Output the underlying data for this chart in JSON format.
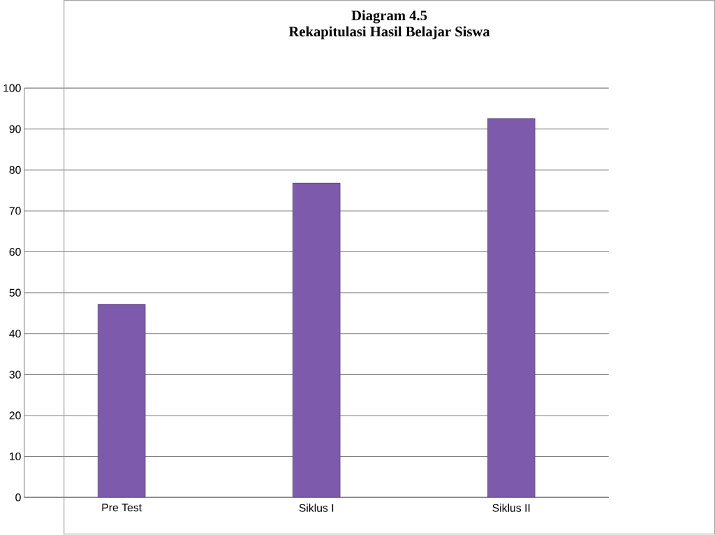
{
  "chart_data": {
    "type": "bar",
    "title": "Diagram  4.5",
    "subtitle": "Rekapitulasi Hasil Belajar Siswa",
    "categories": [
      "Pre Test",
      "Siklus I",
      "Siklus II"
    ],
    "values": [
      47.2,
      76.8,
      92.6
    ],
    "color": "#7d5aab",
    "ylim": [
      0,
      100
    ],
    "yticks": [
      0,
      10,
      20,
      30,
      40,
      50,
      60,
      70,
      80,
      90,
      100
    ],
    "grid": "y"
  }
}
